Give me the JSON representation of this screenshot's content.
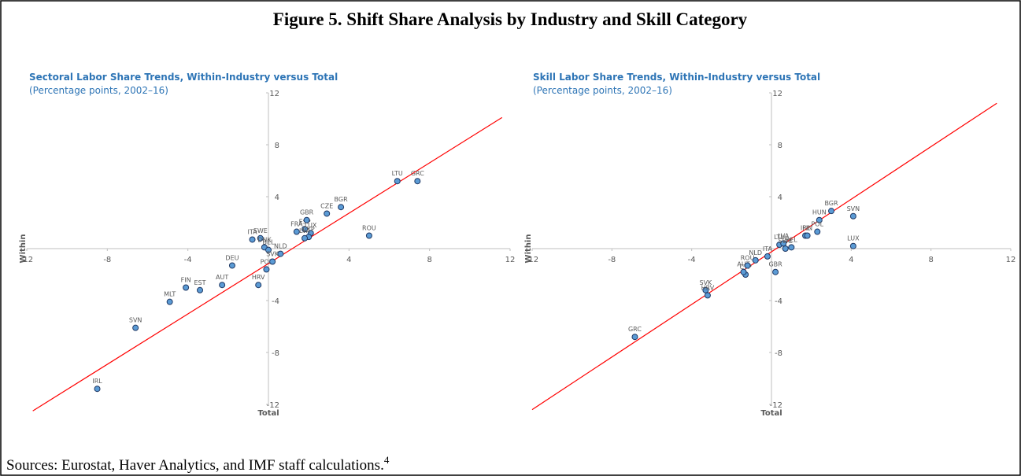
{
  "title": "Figure 5. Shift Share Analysis by Industry and Skill Category",
  "source": "Sources: Eurostat, Haver Analytics, and IMF staff calculations.",
  "source_note": "4",
  "chart_data": [
    {
      "type": "scatter",
      "title": "Sectoral Labor Share Trends, Within-Industry versus Total",
      "subtitle": "(Percentage points, 2002–16)",
      "xlabel": "Total",
      "ylabel": "Within",
      "xlim": [
        -12,
        12
      ],
      "ylim": [
        -12,
        12
      ],
      "xticks": [
        -12,
        -8,
        -4,
        4,
        8,
        12
      ],
      "yticks": [
        -12,
        -8,
        -4,
        4,
        8,
        12
      ],
      "color": "#5b9bd5",
      "point_labels": [
        "IRL",
        "SVN",
        "MLT",
        "FIN",
        "EST",
        "AUT",
        "DEU",
        "HRV",
        "POL",
        "ITA",
        "SWE",
        "DNK",
        "BEL",
        "NLD",
        "SVK",
        "FRA",
        "ESP",
        "GBR",
        "LUX",
        "CYP",
        "LVA",
        "CZE",
        "BGR",
        "ROU",
        "LTU",
        "GRC"
      ],
      "x": [
        -8.5,
        -6.6,
        -4.9,
        -4.1,
        -3.4,
        -2.3,
        -1.8,
        -0.5,
        -0.1,
        -0.8,
        -0.4,
        -0.2,
        0.0,
        0.6,
        0.2,
        1.4,
        1.8,
        1.9,
        2.1,
        2.0,
        1.8,
        2.9,
        3.6,
        5.0,
        6.4,
        7.4
      ],
      "values": [
        -10.8,
        -6.1,
        -4.1,
        -3.0,
        -3.2,
        -2.8,
        -1.3,
        -2.8,
        -1.6,
        0.7,
        0.8,
        0.1,
        -0.1,
        -0.4,
        -1.0,
        1.3,
        1.5,
        2.2,
        1.2,
        0.9,
        0.8,
        2.7,
        3.2,
        1.0,
        5.2,
        5.2
      ],
      "fit_line": {
        "x": [
          -11.7,
          11.6
        ],
        "values": [
          -12.5,
          10.1
        ],
        "color": "#ff0000"
      }
    },
    {
      "type": "scatter",
      "title": "Skill Labor Share Trends, Within-Industry versus Total",
      "subtitle": "(Percentage points, 2002–16)",
      "xlabel": "Total",
      "ylabel": "Within",
      "xlim": [
        -12,
        12
      ],
      "ylim": [
        -12,
        12
      ],
      "xticks": [
        -12,
        -8,
        -4,
        4,
        8,
        12
      ],
      "yticks": [
        -12,
        -8,
        -4,
        4,
        8,
        12
      ],
      "color": "#5b9bd5",
      "point_labels": [
        "GRC",
        "SVK",
        "HRV",
        "CYP",
        "AUT",
        "ROU",
        "NLD",
        "ITA",
        "GBR",
        "LTU",
        "LVA",
        "SWE",
        "BEL",
        "IRL",
        "FIN",
        "HUN",
        "POL",
        "BGR",
        "SVN",
        "LUX"
      ],
      "x": [
        -6.85,
        -3.3,
        -3.2,
        -1.3,
        -1.4,
        -1.2,
        -0.8,
        -0.2,
        0.2,
        0.4,
        0.6,
        0.7,
        1.0,
        1.7,
        1.8,
        2.4,
        2.3,
        3.0,
        4.1,
        4.1
      ],
      "values": [
        -6.8,
        -3.2,
        -3.6,
        -2.0,
        -1.8,
        -1.3,
        -0.9,
        -0.6,
        -1.8,
        0.3,
        0.4,
        0.0,
        0.1,
        1.0,
        1.0,
        2.2,
        1.3,
        2.9,
        2.5,
        0.2
      ],
      "fit_line": {
        "x": [
          -12,
          11.3
        ],
        "values": [
          -12.4,
          11.2
        ],
        "color": "#ff0000"
      }
    }
  ]
}
